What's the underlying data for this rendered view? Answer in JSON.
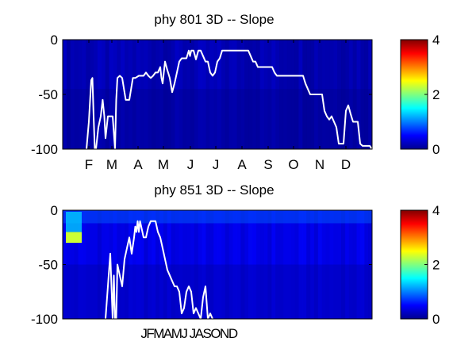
{
  "chart_data": [
    {
      "type": "heatmap",
      "title": "phy  801 3D   -- Slope",
      "xlabel": "",
      "ylabel": "",
      "x_tick_labels": [
        "F",
        "M",
        "A",
        "M",
        "J",
        "J",
        "A",
        "S",
        "O",
        "N",
        "D"
      ],
      "y_ticks": [
        0,
        -50,
        -100
      ],
      "ylim": [
        -100,
        0
      ],
      "grid": false,
      "colorbar": {
        "ticks": [
          0,
          2,
          4
        ],
        "range": [
          0,
          4
        ],
        "colormap": "jet"
      },
      "heatmap_background_value": 0.2,
      "overlay_line": {
        "color": "#ffffff",
        "points": [
          [
            0.1,
            -100
          ],
          [
            0.11,
            -75
          ],
          [
            0.12,
            -37
          ],
          [
            0.125,
            -35
          ],
          [
            0.13,
            -70
          ],
          [
            0.135,
            -100
          ],
          [
            0.14,
            -100
          ],
          [
            0.15,
            -80
          ],
          [
            0.16,
            -70
          ],
          [
            0.168,
            -55
          ],
          [
            0.175,
            -70
          ],
          [
            0.18,
            -90
          ],
          [
            0.19,
            -70
          ],
          [
            0.2,
            -70
          ],
          [
            0.21,
            -70
          ],
          [
            0.22,
            -100
          ],
          [
            0.225,
            -55
          ],
          [
            0.23,
            -35
          ],
          [
            0.24,
            -33
          ],
          [
            0.25,
            -35
          ],
          [
            0.265,
            -55
          ],
          [
            0.28,
            -55
          ],
          [
            0.295,
            -35
          ],
          [
            0.305,
            -35
          ],
          [
            0.32,
            -33
          ],
          [
            0.34,
            -33
          ],
          [
            0.35,
            -30
          ],
          [
            0.36,
            -33
          ],
          [
            0.37,
            -35
          ],
          [
            0.38,
            -33
          ],
          [
            0.39,
            -30
          ],
          [
            0.4,
            -30
          ],
          [
            0.41,
            -25
          ],
          [
            0.415,
            -35
          ],
          [
            0.42,
            -40
          ],
          [
            0.425,
            -30
          ],
          [
            0.43,
            -20
          ],
          [
            0.44,
            -28
          ],
          [
            0.45,
            -35
          ],
          [
            0.46,
            -48
          ],
          [
            0.47,
            -40
          ],
          [
            0.48,
            -30
          ],
          [
            0.49,
            -20
          ],
          [
            0.5,
            -17
          ],
          [
            0.51,
            -17
          ],
          [
            0.52,
            -17
          ],
          [
            0.53,
            -10
          ],
          [
            0.535,
            -15
          ],
          [
            0.54,
            -10
          ],
          [
            0.55,
            -10
          ],
          [
            0.56,
            -18
          ],
          [
            0.57,
            -10
          ],
          [
            0.58,
            -10
          ],
          [
            0.59,
            -15
          ],
          [
            0.6,
            -20
          ],
          [
            0.61,
            -20
          ],
          [
            0.62,
            -30
          ],
          [
            0.63,
            -33
          ],
          [
            0.64,
            -30
          ],
          [
            0.65,
            -20
          ],
          [
            0.66,
            -17
          ],
          [
            0.67,
            -10
          ],
          [
            0.68,
            -10
          ],
          [
            0.69,
            -10
          ],
          [
            0.7,
            -10
          ],
          [
            0.71,
            -10
          ],
          [
            0.72,
            -10
          ],
          [
            0.73,
            -10
          ],
          [
            0.74,
            -10
          ],
          [
            0.75,
            -10
          ],
          [
            0.76,
            -10
          ],
          [
            0.77,
            -10
          ],
          [
            0.78,
            -10
          ],
          [
            0.79,
            -15
          ],
          [
            0.8,
            -20
          ],
          [
            0.81,
            -20
          ],
          [
            0.82,
            -25
          ],
          [
            0.83,
            -25
          ],
          [
            0.84,
            -25
          ],
          [
            0.85,
            -25
          ],
          [
            0.86,
            -25
          ],
          [
            0.87,
            -25
          ],
          [
            0.88,
            -25
          ],
          [
            0.89,
            -30
          ],
          [
            0.9,
            -33
          ],
          [
            0.91,
            -33
          ],
          [
            0.92,
            -33
          ],
          [
            0.93,
            -33
          ],
          [
            0.94,
            -33
          ],
          [
            0.95,
            -33
          ],
          [
            0.96,
            -33
          ],
          [
            0.97,
            -33
          ],
          [
            0.98,
            -33
          ],
          [
            0.99,
            -33
          ],
          [
            1.0,
            -33
          ],
          [
            1.01,
            -33
          ],
          [
            1.02,
            -40
          ],
          [
            1.03,
            -45
          ],
          [
            1.04,
            -50
          ],
          [
            1.05,
            -50
          ],
          [
            1.06,
            -50
          ],
          [
            1.07,
            -50
          ],
          [
            1.08,
            -50
          ],
          [
            1.09,
            -50
          ],
          [
            1.1,
            -65
          ],
          [
            1.11,
            -70
          ],
          [
            1.12,
            -73
          ],
          [
            1.13,
            -70
          ],
          [
            1.14,
            -75
          ],
          [
            1.15,
            -80
          ],
          [
            1.16,
            -95
          ],
          [
            1.17,
            -95
          ],
          [
            1.18,
            -95
          ],
          [
            1.19,
            -65
          ],
          [
            1.2,
            -60
          ],
          [
            1.21,
            -68
          ],
          [
            1.22,
            -75
          ],
          [
            1.23,
            -75
          ],
          [
            1.24,
            -75
          ],
          [
            1.25,
            -95
          ],
          [
            1.26,
            -97
          ],
          [
            1.27,
            -97
          ],
          [
            1.28,
            -97
          ],
          [
            1.29,
            -97
          ],
          [
            1.3,
            -100
          ]
        ]
      }
    },
    {
      "type": "heatmap",
      "title": "phy  851 3D   -- Slope",
      "xlabel": "",
      "ylabel": "",
      "x_tick_labels_text": "JFMAMJ JASOND",
      "y_ticks": [
        0,
        -50,
        -100
      ],
      "ylim": [
        -100,
        0
      ],
      "grid": false,
      "colorbar": {
        "ticks": [
          0,
          2,
          4
        ],
        "range": [
          0,
          4
        ],
        "colormap": "jet"
      },
      "heatmap_background_value": 0.4,
      "heatmap_hotspot": {
        "value": 2.3,
        "depth_range": [
          -30,
          -20
        ],
        "location": "left edge"
      },
      "overlay_line": {
        "color": "#ffffff",
        "points": [
          [
            0.18,
            -100
          ],
          [
            0.19,
            -70
          ],
          [
            0.2,
            -40
          ],
          [
            0.21,
            -100
          ],
          [
            0.215,
            -60
          ],
          [
            0.22,
            -100
          ],
          [
            0.225,
            -100
          ],
          [
            0.23,
            -50
          ],
          [
            0.24,
            -60
          ],
          [
            0.25,
            -70
          ],
          [
            0.26,
            -45
          ],
          [
            0.27,
            -35
          ],
          [
            0.28,
            -25
          ],
          [
            0.29,
            -40
          ],
          [
            0.3,
            -25
          ],
          [
            0.305,
            -15
          ],
          [
            0.31,
            -20
          ],
          [
            0.315,
            -10
          ],
          [
            0.32,
            -20
          ],
          [
            0.325,
            -10
          ],
          [
            0.33,
            -15
          ],
          [
            0.34,
            -25
          ],
          [
            0.35,
            -25
          ],
          [
            0.36,
            -15
          ],
          [
            0.37,
            -10
          ],
          [
            0.38,
            -10
          ],
          [
            0.39,
            -10
          ],
          [
            0.4,
            -20
          ],
          [
            0.41,
            -25
          ],
          [
            0.42,
            -35
          ],
          [
            0.43,
            -45
          ],
          [
            0.44,
            -55
          ],
          [
            0.45,
            -60
          ],
          [
            0.46,
            -65
          ],
          [
            0.47,
            -70
          ],
          [
            0.48,
            -70
          ],
          [
            0.49,
            -75
          ],
          [
            0.5,
            -95
          ],
          [
            0.51,
            -90
          ],
          [
            0.52,
            -75
          ],
          [
            0.53,
            -70
          ],
          [
            0.54,
            -75
          ],
          [
            0.55,
            -95
          ],
          [
            0.56,
            -90
          ],
          [
            0.57,
            -95
          ],
          [
            0.58,
            -100
          ],
          [
            0.59,
            -80
          ],
          [
            0.6,
            -70
          ],
          [
            0.61,
            -100
          ],
          [
            0.62,
            -95
          ],
          [
            0.63,
            -100
          ]
        ]
      }
    }
  ]
}
